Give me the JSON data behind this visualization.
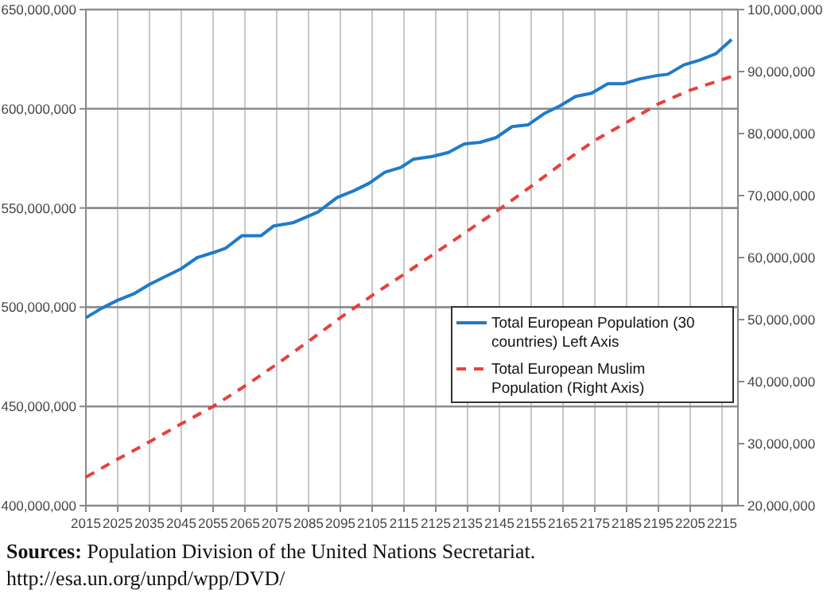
{
  "chart_data": {
    "type": "line",
    "x": [
      2015,
      2020,
      2025,
      2030,
      2035,
      2040,
      2045,
      2050,
      2055,
      2059,
      2064,
      2070,
      2074,
      2080,
      2088,
      2094,
      2099,
      2104,
      2109,
      2114,
      2118,
      2124,
      2129,
      2134,
      2139,
      2144,
      2149,
      2154,
      2159,
      2164,
      2169,
      2174,
      2179,
      2184,
      2189,
      2194,
      2198,
      2203,
      2208,
      2213,
      2218
    ],
    "series": [
      {
        "name": "Total European Population (30 countries) Left Axis",
        "color": "#1f7bc8",
        "line_style": "solid",
        "values": [
          494700000,
          499500000,
          503500000,
          506700000,
          511500000,
          515500000,
          519400000,
          525000000,
          527500000,
          529800000,
          536000000,
          536000000,
          540900000,
          542500000,
          548000000,
          555300000,
          558500000,
          562400000,
          568000000,
          570400000,
          574600000,
          576000000,
          578000000,
          582300000,
          583100000,
          585500000,
          591000000,
          591900000,
          597500000,
          601400000,
          606200000,
          607800000,
          612600000,
          612600000,
          615000000,
          616600000,
          617400000,
          622100000,
          624500000,
          627700000,
          634900000
        ]
      },
      {
        "name": "Total European Muslim Population (Right Axis)",
        "color": "#e8403a",
        "line_style": "dashed",
        "axis": "y2",
        "x": [
          2015,
          2025,
          2035,
          2045,
          2055,
          2065,
          2075,
          2085,
          2095,
          2105,
          2115,
          2125,
          2135,
          2145,
          2155,
          2165,
          2175,
          2185,
          2195,
          2205,
          2218
        ],
        "values": [
          24600000,
          27500000,
          30300000,
          33200000,
          36000000,
          39300000,
          42800000,
          46500000,
          50300000,
          53900000,
          57300000,
          60800000,
          64300000,
          67800000,
          71500000,
          75300000,
          78900000,
          81800000,
          84800000,
          87000000,
          89200000
        ]
      }
    ],
    "xlim": [
      2015,
      2220
    ],
    "xticks": [
      2015,
      2025,
      2035,
      2045,
      2055,
      2065,
      2075,
      2085,
      2095,
      2105,
      2115,
      2125,
      2135,
      2145,
      2155,
      2165,
      2175,
      2185,
      2195,
      2205,
      2215
    ],
    "ylim": [
      400000000,
      650000000
    ],
    "yticks": [
      {
        "value": 400000000,
        "label": "400,000,000"
      },
      {
        "value": 450000000,
        "label": "450,000,000"
      },
      {
        "value": 500000000,
        "label": "500,000,000"
      },
      {
        "value": 550000000,
        "label": "550,000,000"
      },
      {
        "value": 600000000,
        "label": "600,000,000"
      },
      {
        "value": 650000000,
        "label": "650,000,000"
      }
    ],
    "y2lim": [
      20000000,
      100000000
    ],
    "y2ticks": [
      {
        "value": 20000000,
        "label": "20,000,000"
      },
      {
        "value": 30000000,
        "label": "30,000,000"
      },
      {
        "value": 40000000,
        "label": "40,000,000"
      },
      {
        "value": 50000000,
        "label": "50,000,000"
      },
      {
        "value": 60000000,
        "label": "60,000,000"
      },
      {
        "value": 70000000,
        "label": "70,000,000"
      },
      {
        "value": 80000000,
        "label": "80,000,000"
      },
      {
        "value": 90000000,
        "label": "90,000,000"
      },
      {
        "value": 100000000,
        "label": "100,000,000"
      }
    ],
    "grid": true,
    "legend": "right",
    "marker": "none",
    "annotations": [
      "Sources: Population Division of the United Nations Secretariat. http://esa.un.org/unpd/wpp/DVD/"
    ]
  }
}
